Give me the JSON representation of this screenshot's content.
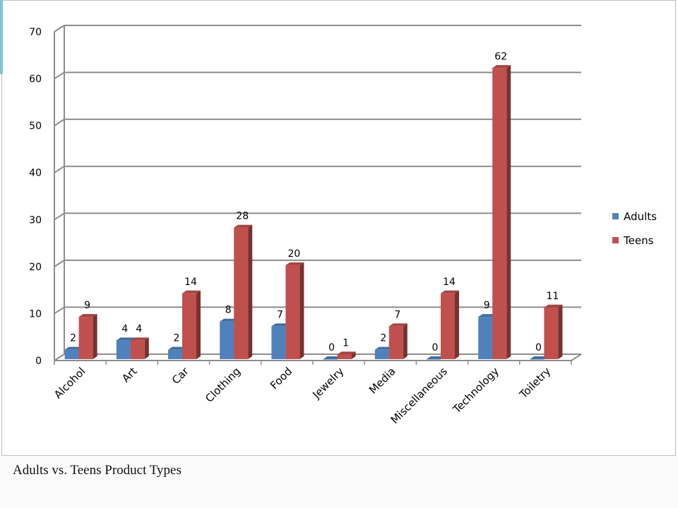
{
  "caption": "Adults vs. Teens Product Types",
  "chart_data": {
    "type": "bar",
    "categories": [
      "Alcohol",
      "Art",
      "Car",
      "Clothing",
      "Food",
      "Jewelry",
      "Media",
      "Miscellaneous",
      "Technology",
      "Toiletry"
    ],
    "series": [
      {
        "name": "Adults",
        "values": [
          2,
          4,
          2,
          8,
          7,
          0,
          2,
          0,
          9,
          0
        ],
        "color": "#4f81bd"
      },
      {
        "name": "Teens",
        "values": [
          9,
          4,
          14,
          28,
          20,
          1,
          7,
          14,
          62,
          11
        ],
        "color": "#c0504d"
      }
    ],
    "ylim": [
      0,
      70
    ],
    "yticks": [
      0,
      10,
      20,
      30,
      40,
      50,
      60,
      70
    ],
    "grid": true,
    "legend_position": "right",
    "data_labels": true
  }
}
